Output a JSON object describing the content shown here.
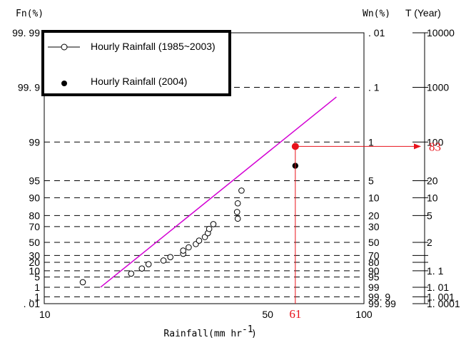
{
  "chart_data": {
    "type": "scatter",
    "xlabel": "Rainfall(mm hr",
    "xlabel_sup": "-1",
    "xlabel_close": ")",
    "x_scale": "log",
    "xlim": [
      10,
      100
    ],
    "x_ticks": [
      10,
      50,
      100
    ],
    "x_tick_labels": [
      "10",
      "50",
      "100"
    ],
    "y_scale": "gumbel-probability",
    "ylabel_left": "Fn(%)",
    "ylabel_right": "Wn(%)",
    "ylabel_return": "T (Year)",
    "y_ticks_fn": [
      {
        "fn": 99.99,
        "label": "99. 99",
        "wn": ". 01"
      },
      {
        "fn": 99.9,
        "label": "99. 9",
        "wn": ". 1"
      },
      {
        "fn": 99,
        "label": "99",
        "wn": "1"
      },
      {
        "fn": 95,
        "label": "95",
        "wn": "5"
      },
      {
        "fn": 90,
        "label": "90",
        "wn": "10"
      },
      {
        "fn": 80,
        "label": "80",
        "wn": "20"
      },
      {
        "fn": 70,
        "label": "70",
        "wn": "30"
      },
      {
        "fn": 50,
        "label": "50",
        "wn": "50"
      },
      {
        "fn": 30,
        "label": "30",
        "wn": "70"
      },
      {
        "fn": 20,
        "label": "20",
        "wn": "80"
      },
      {
        "fn": 10,
        "label": "10",
        "wn": "90"
      },
      {
        "fn": 5,
        "label": "5",
        "wn": "95"
      },
      {
        "fn": 1,
        "label": "1",
        "wn": "99"
      },
      {
        "fn": 0.1,
        "label": ". 1",
        "wn": "99. 9"
      },
      {
        "fn": 0.01,
        "label": ". 01",
        "wn": "99. 99"
      }
    ],
    "return_period_ticks": [
      {
        "fn": 99.99,
        "label": "10000"
      },
      {
        "fn": 99.9,
        "label": "1000"
      },
      {
        "fn": 99,
        "label": "100"
      },
      {
        "fn": 95,
        "label": "20"
      },
      {
        "fn": 90,
        "label": "10"
      },
      {
        "fn": 80,
        "label": "5"
      },
      {
        "fn": 50,
        "label": "2"
      },
      {
        "fn": 30,
        "label": ""
      },
      {
        "fn": 20,
        "label": ""
      },
      {
        "fn": 10,
        "label": "1. 1"
      },
      {
        "fn": 1,
        "label": "1. 01"
      },
      {
        "fn": 0.1,
        "label": "1. 001"
      },
      {
        "fn": 0.01,
        "label": "1. 0001"
      }
    ],
    "series": [
      {
        "name": "Hourly Rainfall (1985~2003)",
        "marker": "open-circle",
        "points": [
          {
            "x": 13.2,
            "fn": 2.4
          },
          {
            "x": 18.7,
            "fn": 7.5
          },
          {
            "x": 20.2,
            "fn": 12.4
          },
          {
            "x": 21.2,
            "fn": 17.5
          },
          {
            "x": 23.6,
            "fn": 22.5
          },
          {
            "x": 24.8,
            "fn": 27.5
          },
          {
            "x": 27.2,
            "fn": 32.5
          },
          {
            "x": 27.2,
            "fn": 37.5
          },
          {
            "x": 28.3,
            "fn": 42.5
          },
          {
            "x": 29.8,
            "fn": 47.5
          },
          {
            "x": 30.5,
            "fn": 52.5
          },
          {
            "x": 31.8,
            "fn": 57.5
          },
          {
            "x": 32.5,
            "fn": 62.5
          },
          {
            "x": 32.8,
            "fn": 67.5
          },
          {
            "x": 33.8,
            "fn": 72.5
          },
          {
            "x": 40.3,
            "fn": 77.5
          },
          {
            "x": 40.1,
            "fn": 82.5
          },
          {
            "x": 40.3,
            "fn": 87.5
          },
          {
            "x": 41.4,
            "fn": 92.5
          }
        ]
      },
      {
        "name": "Hourly Rainfall (2004)",
        "marker": "filled-circle",
        "points": [
          {
            "x": 61,
            "fn": 97.3
          }
        ]
      }
    ],
    "fit_line": {
      "color": "#d300d3",
      "from": {
        "x": 15.0,
        "fn": 1.0
      },
      "to": {
        "x": 82.0,
        "fn": 99.85
      }
    },
    "annotation": {
      "x": 61,
      "fn": 98.8,
      "x_label": "61",
      "t_label": "83",
      "color": "#e8121b"
    },
    "legend_placement": "top-left",
    "grid": "dashed horizontal"
  }
}
